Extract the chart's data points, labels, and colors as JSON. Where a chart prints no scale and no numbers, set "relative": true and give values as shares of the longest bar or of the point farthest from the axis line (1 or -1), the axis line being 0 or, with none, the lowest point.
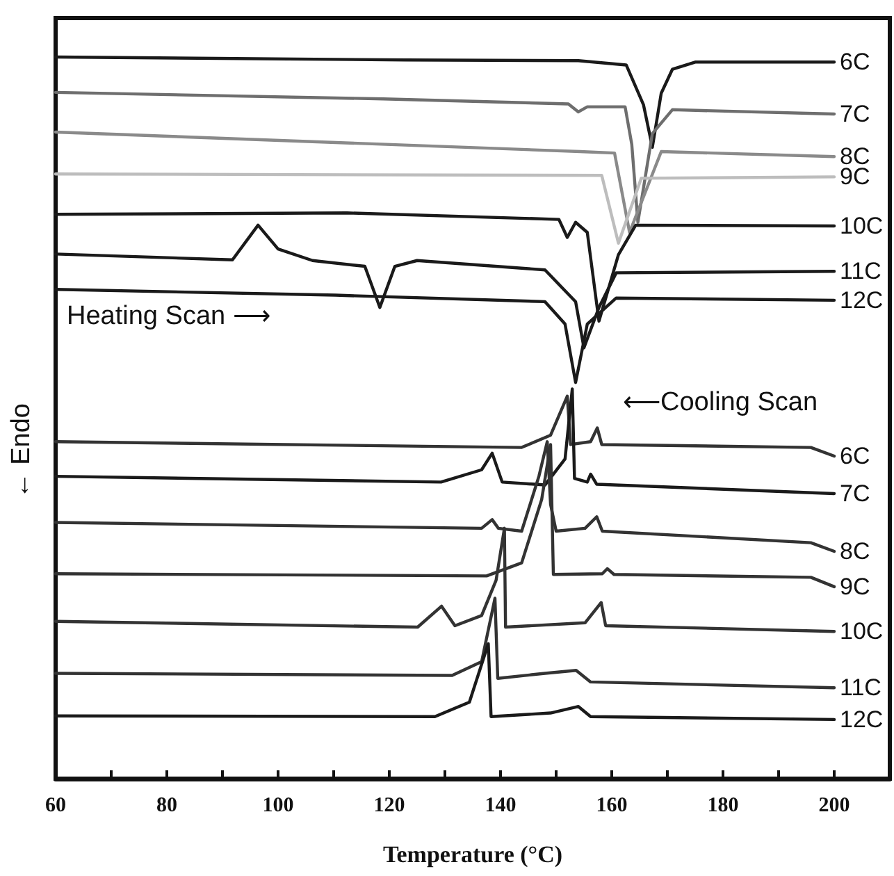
{
  "chart_data": {
    "type": "line",
    "relative": true,
    "xlabel": "Temperature (°C)",
    "ylabel": "← Endo",
    "xlim": [
      60,
      210
    ],
    "xticks": [
      60,
      {
        "value": 70,
        "label": null
      },
      80,
      {
        "value": 90,
        "label": null
      },
      100,
      {
        "value": 110,
        "label": null
      },
      120,
      {
        "value": 130,
        "label": null
      },
      140,
      {
        "value": 150,
        "label": null
      },
      160,
      {
        "value": 170,
        "label": null
      },
      180,
      {
        "value": 190,
        "label": null
      },
      200
    ],
    "annotations": [
      "Heating Scan ⟶",
      "⟵Cooling Scan"
    ],
    "marker": "none",
    "line_style": "solid",
    "legend": false,
    "grid": false,
    "series": [
      {
        "name": "6C",
        "color": "#1a1a1a",
        "x": [
          60,
          123,
          154,
          162.6,
          165.7,
          167.3,
          168.9,
          170.9,
          175,
          200
        ],
        "values": [
          1.0,
          0.996,
          0.995,
          0.989,
          0.934,
          0.875,
          0.95,
          0.983,
          0.993,
          0.993
        ]
      },
      {
        "name": "7C",
        "color": "#6e6e6e",
        "x": [
          60,
          118.9,
          152.2,
          154,
          155.6,
          162.4,
          163.6,
          164.7,
          167.3,
          170.9,
          200
        ],
        "values": [
          0.951,
          0.942,
          0.935,
          0.924,
          0.931,
          0.931,
          0.879,
          0.771,
          0.894,
          0.927,
          0.921
        ]
      },
      {
        "name": "8C",
        "color": "#8a8a8a",
        "x": [
          60,
          154.3,
          160.5,
          163.2,
          168.9,
          200
        ],
        "values": [
          0.896,
          0.869,
          0.867,
          0.757,
          0.869,
          0.862
        ]
      },
      {
        "name": "9C",
        "color": "#bdbdbd",
        "x": [
          60,
          158.2,
          161.2,
          165.3,
          200
        ],
        "values": [
          0.838,
          0.836,
          0.742,
          0.832,
          0.834
        ]
      },
      {
        "name": "10C",
        "color": "#1a1a1a",
        "x": [
          60,
          112.4,
          150.5,
          152,
          153.5,
          155.6,
          157.7,
          161.2,
          164.3,
          200
        ],
        "values": [
          0.782,
          0.784,
          0.775,
          0.75,
          0.771,
          0.757,
          0.634,
          0.726,
          0.767,
          0.766
        ]
      },
      {
        "name": "11C",
        "color": "#1a1a1a",
        "x": [
          60,
          91.8,
          96.4,
          100,
          106.2,
          115.6,
          118.3,
          121,
          125,
          148,
          153.5,
          155,
          157.7,
          160.8,
          200
        ],
        "values": [
          0.727,
          0.719,
          0.767,
          0.734,
          0.718,
          0.71,
          0.653,
          0.71,
          0.718,
          0.705,
          0.661,
          0.597,
          0.653,
          0.701,
          0.703
        ]
      },
      {
        "name": "12C",
        "color": "#1a1a1a",
        "x": [
          60,
          110.3,
          148,
          151.6,
          153.5,
          155.6,
          160.8,
          200
        ],
        "values": [
          0.678,
          0.67,
          0.661,
          0.63,
          0.549,
          0.63,
          0.666,
          0.663
        ]
      },
      {
        "name": "6C",
        "color": "#333333",
        "x": [
          60,
          143.8,
          149,
          152,
          152.6,
          156.2,
          157.4,
          158.2,
          195.8,
          200
        ],
        "values": [
          0.467,
          0.459,
          0.476,
          0.53,
          0.463,
          0.467,
          0.486,
          0.463,
          0.459,
          0.447
        ]
      },
      {
        "name": "7C",
        "color": "#1a1a1a",
        "x": [
          60,
          129.3,
          136.6,
          138.5,
          140.3,
          148,
          151.6,
          152.9,
          153.3,
          155.6,
          156.2,
          157.3,
          200
        ],
        "values": [
          0.419,
          0.411,
          0.428,
          0.451,
          0.411,
          0.407,
          0.443,
          0.54,
          0.416,
          0.411,
          0.422,
          0.408,
          0.395
        ]
      },
      {
        "name": "8C",
        "color": "#333333",
        "x": [
          60,
          136.6,
          138.5,
          139.6,
          143.8,
          146.9,
          148.4,
          149,
          150,
          155.2,
          157.3,
          158.3,
          195.8,
          200
        ],
        "values": [
          0.355,
          0.347,
          0.359,
          0.347,
          0.343,
          0.419,
          0.467,
          0.38,
          0.343,
          0.347,
          0.363,
          0.343,
          0.327,
          0.315
        ]
      },
      {
        "name": "9C",
        "color": "#333333",
        "x": [
          60,
          137.5,
          143.8,
          147.4,
          149,
          149.5,
          158.3,
          159.2,
          160.4,
          195.8,
          200
        ],
        "values": [
          0.284,
          0.281,
          0.299,
          0.387,
          0.463,
          0.283,
          0.284,
          0.291,
          0.283,
          0.279,
          0.266
        ]
      },
      {
        "name": "10C",
        "color": "#333333",
        "x": [
          60,
          125.1,
          129.4,
          131.8,
          136.6,
          139.2,
          140.7,
          140.9,
          155.2,
          158.1,
          158.9,
          200
        ],
        "values": [
          0.218,
          0.21,
          0.239,
          0.212,
          0.226,
          0.275,
          0.347,
          0.21,
          0.216,
          0.244,
          0.212,
          0.204
        ]
      },
      {
        "name": "11C",
        "color": "#333333",
        "x": [
          60,
          131.3,
          136.6,
          139,
          139.5,
          148,
          153.6,
          156.2,
          200
        ],
        "values": [
          0.146,
          0.143,
          0.162,
          0.25,
          0.139,
          0.146,
          0.15,
          0.134,
          0.126
        ]
      },
      {
        "name": "12C",
        "color": "#1a1a1a",
        "x": [
          60,
          128.2,
          134.4,
          137.8,
          138.3,
          149,
          154,
          156.2,
          200
        ],
        "values": [
          0.087,
          0.086,
          0.106,
          0.187,
          0.086,
          0.091,
          0.1,
          0.086,
          0.082
        ]
      }
    ]
  }
}
